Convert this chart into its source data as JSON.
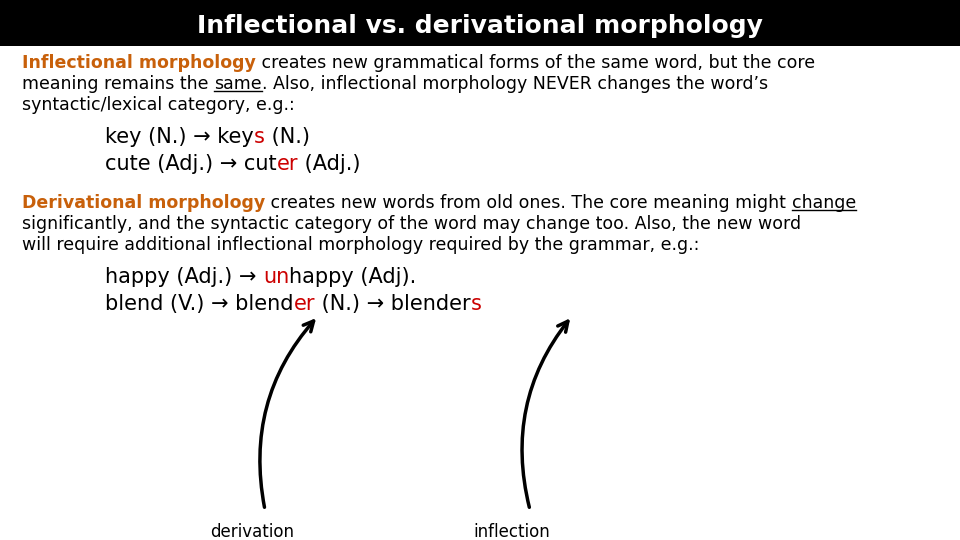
{
  "title": "Inflectional vs. derivational morphology",
  "title_bg": "#000000",
  "title_color": "#ffffff",
  "title_fontsize": 18,
  "bg_color": "#ffffff",
  "body_fontsize": 12.5,
  "example_fontsize": 15,
  "orange_color": "#c8600a",
  "red_color": "#cc0000",
  "black_color": "#000000"
}
